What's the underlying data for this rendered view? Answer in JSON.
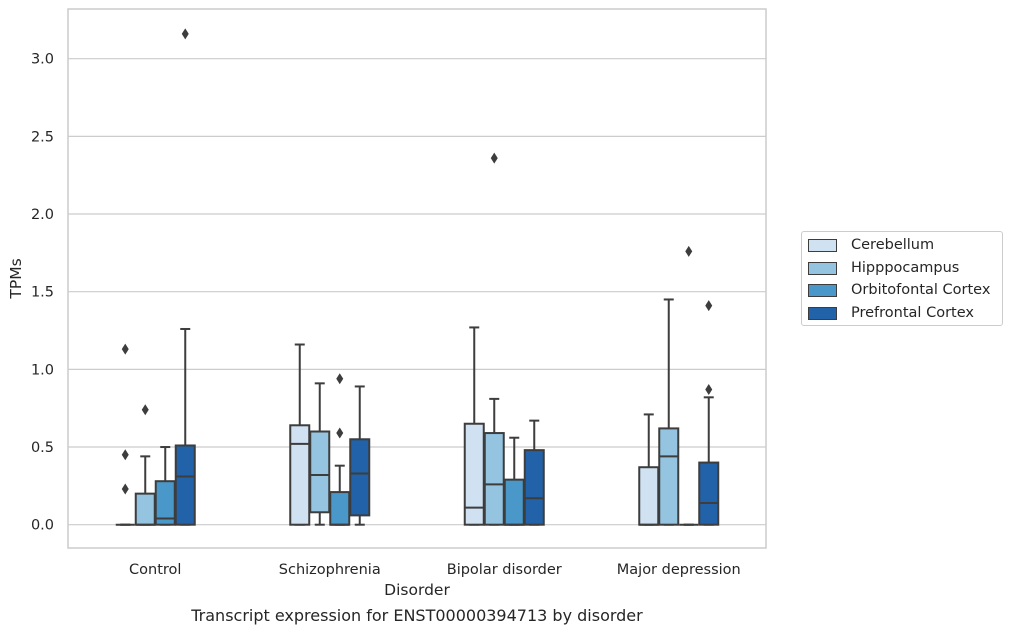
{
  "chart_data": {
    "type": "box",
    "xlabel": "Disorder",
    "ylabel": "TPMs",
    "caption": "Transcript expression for ENST00000394713 by disorder",
    "ylim": [
      -0.15,
      3.32
    ],
    "yticks": [
      "0.0",
      "0.5",
      "1.0",
      "1.5",
      "2.0",
      "2.5",
      "3.0"
    ],
    "grid": "horizontal",
    "legend_placement": "right-outside",
    "categories": [
      "Control",
      "Schizophrenia",
      "Bipolar disorder",
      "Major depression"
    ],
    "series": [
      {
        "name": "Cerebellum",
        "color": "#d0e1f2",
        "boxes": [
          {
            "q1": 0.0,
            "median": 0.0,
            "q3": 0.0,
            "whisker_low": 0.0,
            "whisker_high": 0.0,
            "outliers": [
              1.13,
              0.45,
              0.23
            ]
          },
          {
            "q1": 0.0,
            "median": 0.52,
            "q3": 0.64,
            "whisker_low": 0.0,
            "whisker_high": 1.16,
            "outliers": []
          },
          {
            "q1": 0.0,
            "median": 0.11,
            "q3": 0.65,
            "whisker_low": 0.0,
            "whisker_high": 1.27,
            "outliers": []
          },
          {
            "q1": 0.0,
            "median": 0.0,
            "q3": 0.37,
            "whisker_low": 0.0,
            "whisker_high": 0.71,
            "outliers": []
          }
        ]
      },
      {
        "name": "Hipppocampus",
        "color": "#94c4df",
        "boxes": [
          {
            "q1": 0.0,
            "median": 0.0,
            "q3": 0.2,
            "whisker_low": 0.0,
            "whisker_high": 0.44,
            "outliers": [
              0.74
            ]
          },
          {
            "q1": 0.08,
            "median": 0.32,
            "q3": 0.6,
            "whisker_low": 0.0,
            "whisker_high": 0.91,
            "outliers": []
          },
          {
            "q1": 0.0,
            "median": 0.26,
            "q3": 0.59,
            "whisker_low": 0.0,
            "whisker_high": 0.81,
            "outliers": [
              2.36
            ]
          },
          {
            "q1": 0.0,
            "median": 0.44,
            "q3": 0.62,
            "whisker_low": 0.0,
            "whisker_high": 1.45,
            "outliers": []
          }
        ]
      },
      {
        "name": "Orbitofontal Cortex",
        "color": "#4a98c9",
        "boxes": [
          {
            "q1": 0.0,
            "median": 0.04,
            "q3": 0.28,
            "whisker_low": 0.0,
            "whisker_high": 0.5,
            "outliers": []
          },
          {
            "q1": 0.0,
            "median": 0.0,
            "q3": 0.21,
            "whisker_low": 0.0,
            "whisker_high": 0.38,
            "outliers": [
              0.59,
              0.94
            ]
          },
          {
            "q1": 0.0,
            "median": 0.0,
            "q3": 0.29,
            "whisker_low": 0.0,
            "whisker_high": 0.56,
            "outliers": []
          },
          {
            "q1": 0.0,
            "median": 0.0,
            "q3": 0.0,
            "whisker_low": 0.0,
            "whisker_high": 0.0,
            "outliers": [
              1.76
            ]
          }
        ]
      },
      {
        "name": "Prefrontal Cortex",
        "color": "#2262a8",
        "boxes": [
          {
            "q1": 0.0,
            "median": 0.31,
            "q3": 0.51,
            "whisker_low": 0.0,
            "whisker_high": 1.26,
            "outliers": [
              3.16
            ]
          },
          {
            "q1": 0.06,
            "median": 0.33,
            "q3": 0.55,
            "whisker_low": 0.0,
            "whisker_high": 0.89,
            "outliers": []
          },
          {
            "q1": 0.0,
            "median": 0.17,
            "q3": 0.48,
            "whisker_low": 0.0,
            "whisker_high": 0.67,
            "outliers": []
          },
          {
            "q1": 0.0,
            "median": 0.14,
            "q3": 0.4,
            "whisker_low": 0.0,
            "whisker_high": 0.82,
            "outliers": [
              0.87,
              1.41
            ]
          }
        ]
      }
    ]
  }
}
